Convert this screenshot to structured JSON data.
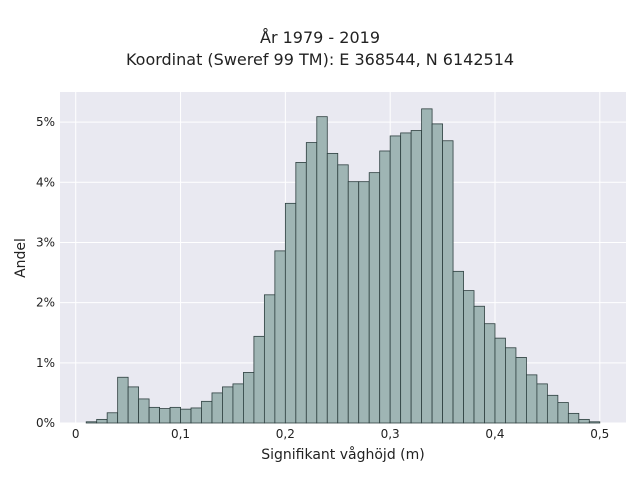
{
  "chart_data": {
    "type": "bar",
    "title": "År 1979 - 2019",
    "subtitle": "Koordinat (Sweref 99 TM): E 368544, N 6142514",
    "xlabel": "Signifikant våghöjd (m)",
    "ylabel": "Andel",
    "x_ticks": [
      "0",
      "0,1",
      "0,2",
      "0,3",
      "0,4",
      "0,5"
    ],
    "y_ticks": [
      "0%",
      "1%",
      "2%",
      "3%",
      "4%",
      "5%"
    ],
    "xlim": [
      -0.015,
      0.525
    ],
    "ylim": [
      0,
      5.5
    ],
    "bin_width": 0.01,
    "bins_start": [
      0.01,
      0.02,
      0.03,
      0.04,
      0.05,
      0.06,
      0.07,
      0.08,
      0.09,
      0.1,
      0.11,
      0.12,
      0.13,
      0.14,
      0.15,
      0.16,
      0.17,
      0.18,
      0.19,
      0.2,
      0.21,
      0.22,
      0.23,
      0.24,
      0.25,
      0.26,
      0.27,
      0.28,
      0.29,
      0.3,
      0.31,
      0.32,
      0.33,
      0.34,
      0.35,
      0.36,
      0.37,
      0.38,
      0.39,
      0.4,
      0.41,
      0.42,
      0.43,
      0.44,
      0.45,
      0.46,
      0.47,
      0.48,
      0.49
    ],
    "values_percent": [
      0.02,
      0.06,
      0.17,
      0.76,
      0.6,
      0.4,
      0.26,
      0.24,
      0.26,
      0.23,
      0.25,
      0.36,
      0.5,
      0.6,
      0.65,
      0.84,
      1.44,
      2.13,
      2.86,
      3.65,
      4.33,
      4.66,
      5.09,
      4.48,
      4.29,
      4.01,
      4.01,
      4.16,
      4.52,
      4.77,
      4.82,
      4.86,
      5.22,
      4.97,
      4.69,
      2.52,
      2.2,
      1.94,
      1.65,
      1.41,
      1.25,
      1.09,
      0.8,
      0.65,
      0.46,
      0.34,
      0.16,
      0.06,
      0.02
    ],
    "grid": true,
    "colors": {
      "bar_fill": "#9fb5b4",
      "bar_edge": "#2d3f3f",
      "plot_background": "#e9e9f1",
      "grid": "#ffffff"
    }
  }
}
